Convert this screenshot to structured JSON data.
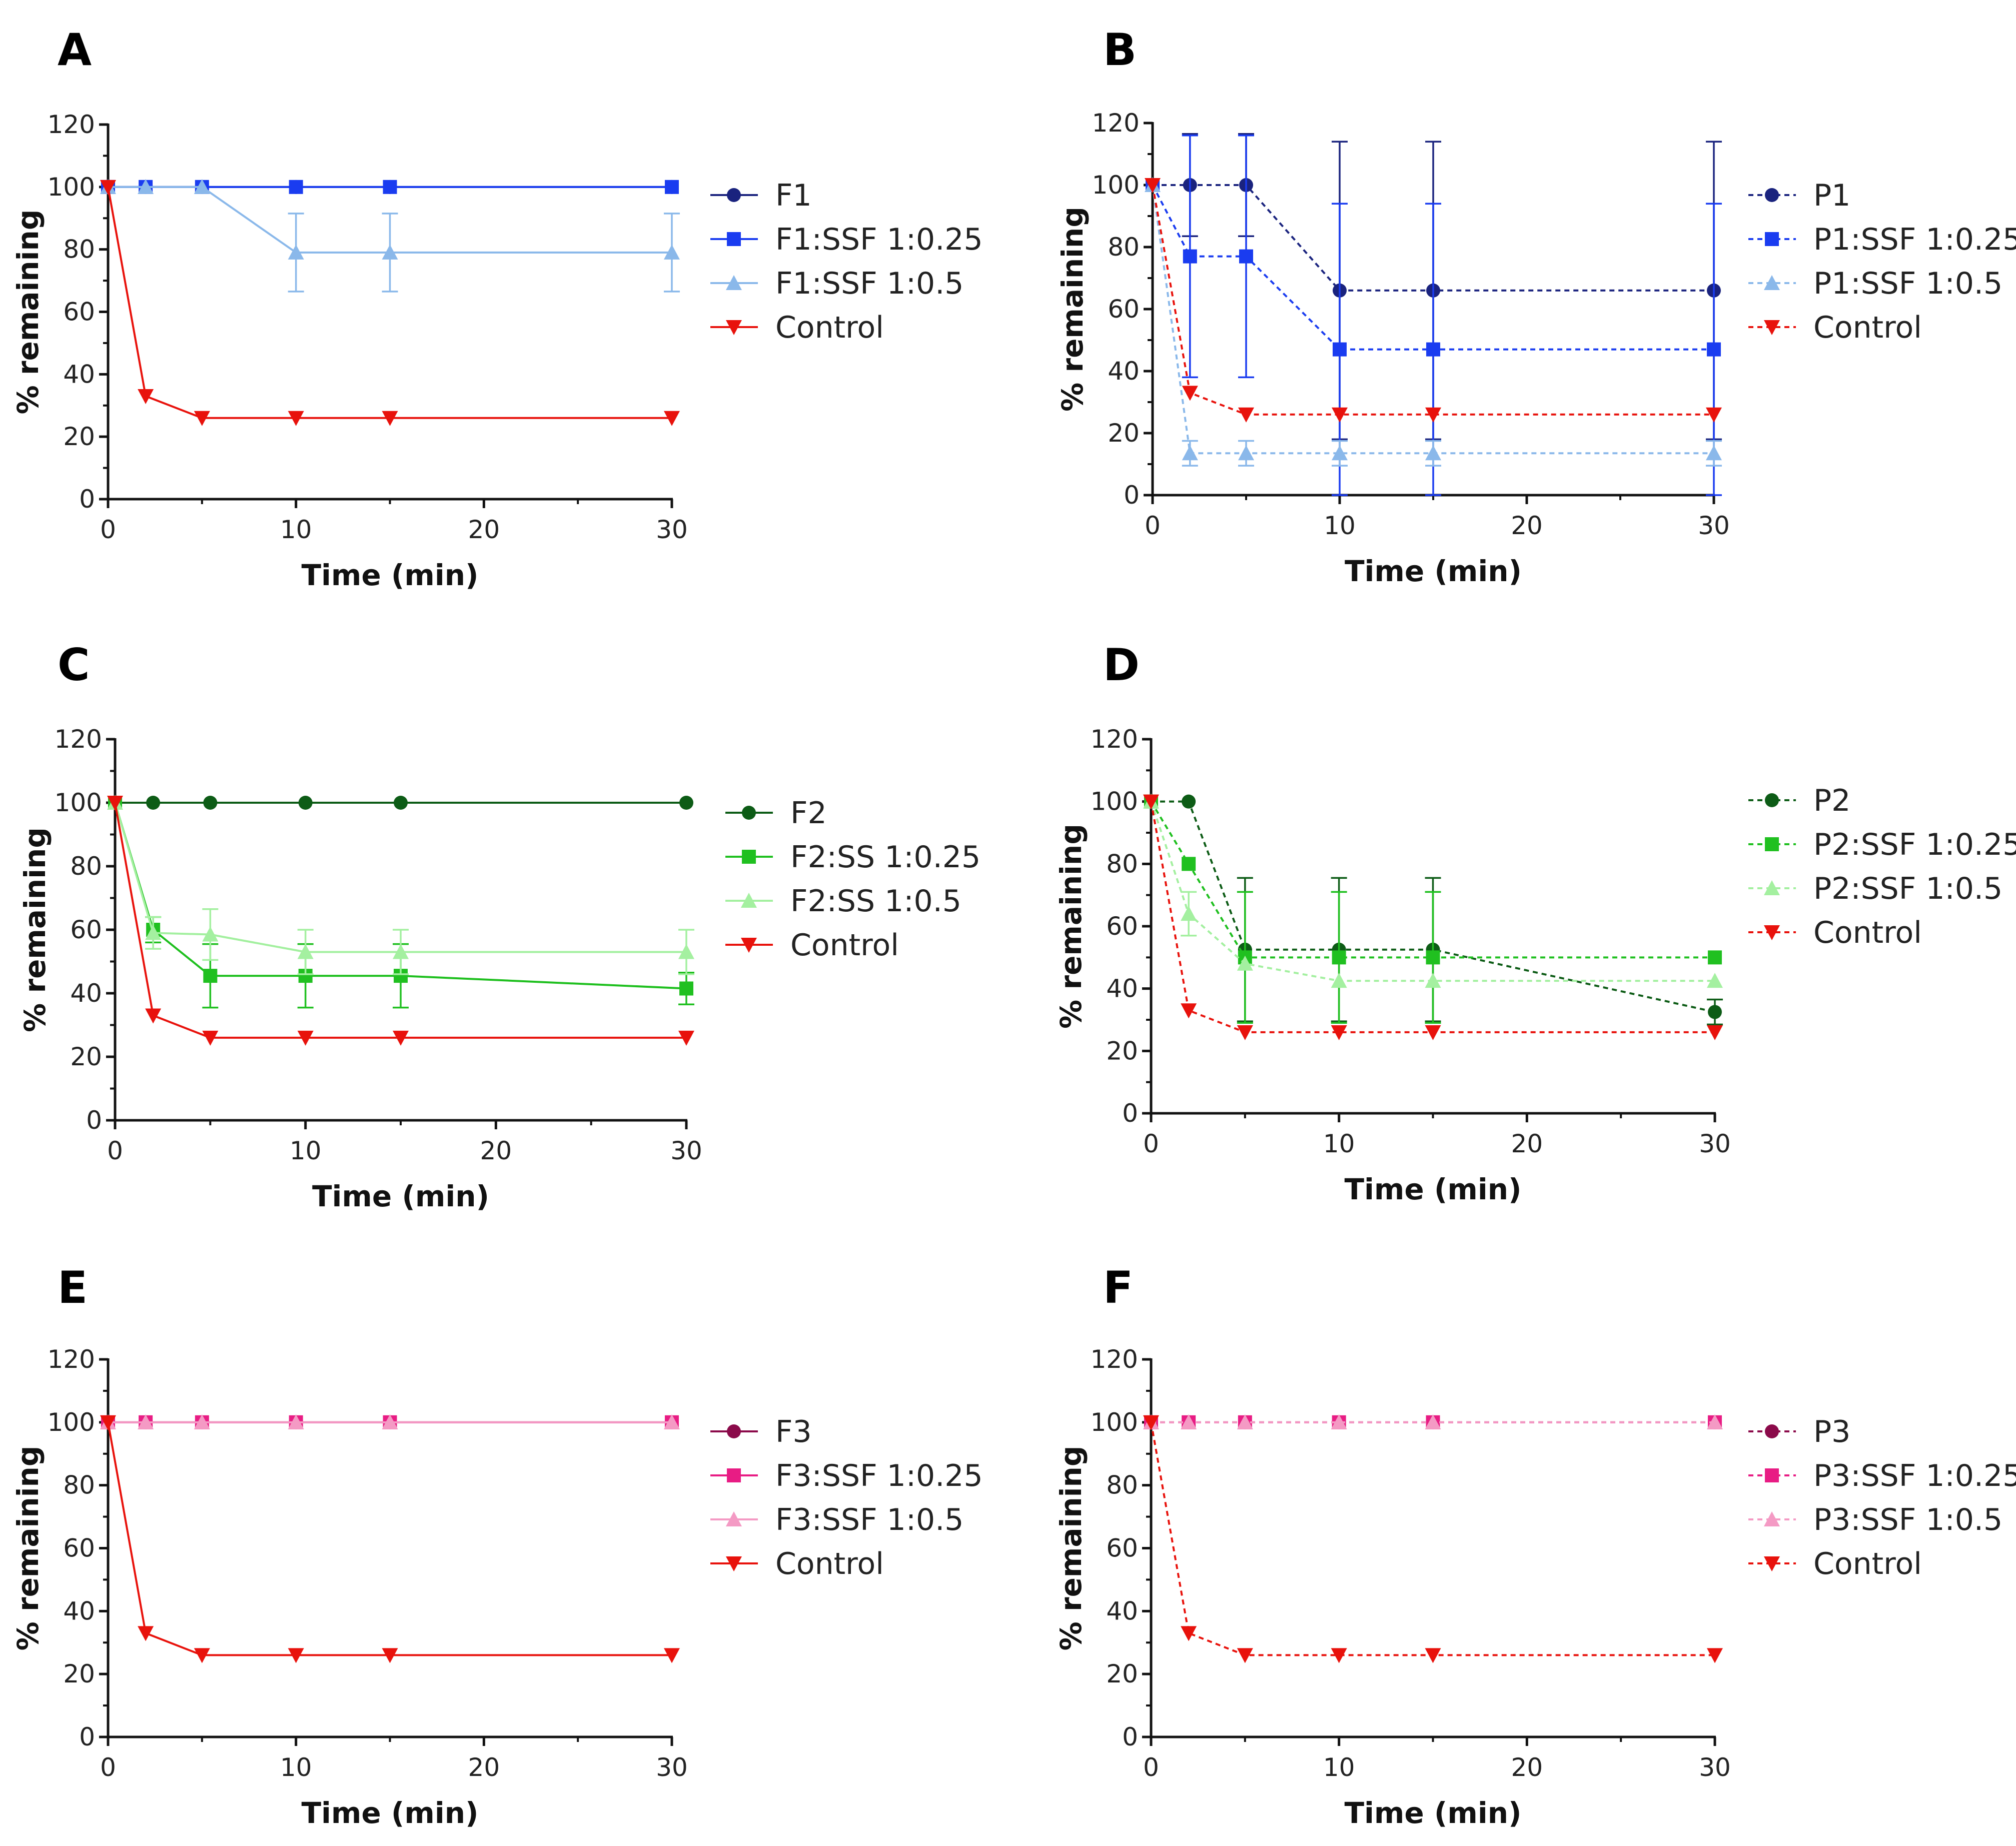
{
  "chart_data": [
    {
      "panel": "A",
      "type": "line",
      "xlabel": "Time (min)",
      "ylabel": "% remaining",
      "xlim": [
        0,
        30
      ],
      "ylim": [
        0,
        120
      ],
      "xticks": [
        0,
        10,
        20,
        30
      ],
      "yticks": [
        0,
        20,
        40,
        60,
        80,
        100,
        120
      ],
      "x": [
        0,
        2,
        5,
        10,
        15,
        30
      ],
      "legend_position": "right",
      "series": [
        {
          "name": "F1",
          "color": "#1a237e",
          "marker": "circle",
          "dashed": false,
          "values": [
            100,
            100,
            100,
            100,
            100,
            100
          ],
          "errors": [
            0,
            0,
            0,
            0,
            0,
            0
          ]
        },
        {
          "name": "F1:SSF 1:0.25",
          "color": "#1a3cf0",
          "marker": "square",
          "dashed": false,
          "values": [
            100,
            100,
            100,
            100,
            100,
            100
          ],
          "errors": [
            0,
            0,
            0,
            0,
            0,
            0
          ]
        },
        {
          "name": "F1:SSF 1:0.5",
          "color": "#8ab8ea",
          "marker": "triangle-up",
          "dashed": false,
          "values": [
            100,
            100,
            100,
            79,
            79,
            79
          ],
          "errors": [
            0,
            0,
            0,
            12.5,
            12.5,
            12.5
          ]
        },
        {
          "name": "Control",
          "color": "#e8120c",
          "marker": "triangle-down",
          "dashed": false,
          "values": [
            100,
            33,
            26,
            26,
            26,
            26
          ],
          "errors": [
            0,
            0,
            0,
            0,
            0,
            0
          ]
        }
      ]
    },
    {
      "panel": "B",
      "type": "line",
      "xlabel": "Time (min)",
      "ylabel": "% remaining",
      "xlim": [
        0,
        30
      ],
      "ylim": [
        0,
        120
      ],
      "xticks": [
        0,
        10,
        20,
        30
      ],
      "yticks": [
        0,
        20,
        40,
        60,
        80,
        100,
        120
      ],
      "x": [
        0,
        2,
        5,
        10,
        15,
        30
      ],
      "legend_position": "right",
      "series": [
        {
          "name": "P1",
          "color": "#1a237e",
          "marker": "circle",
          "dashed": true,
          "values": [
            100,
            100,
            100,
            66,
            66,
            66
          ],
          "errors": [
            0,
            16.5,
            16.5,
            48,
            48,
            48
          ]
        },
        {
          "name": "P1:SSF 1:0.25",
          "color": "#1a3cf0",
          "marker": "square",
          "dashed": true,
          "values": [
            100,
            77,
            77,
            47,
            47,
            47
          ],
          "errors": [
            0,
            39,
            39,
            47,
            47,
            47
          ]
        },
        {
          "name": "P1:SSF 1:0.5",
          "color": "#8ab8ea",
          "marker": "triangle-up",
          "dashed": true,
          "values": [
            100,
            13.5,
            13.5,
            13.5,
            13.5,
            13.5
          ],
          "errors": [
            0,
            4,
            4,
            4,
            4,
            4
          ]
        },
        {
          "name": "Control",
          "color": "#e8120c",
          "marker": "triangle-down",
          "dashed": true,
          "values": [
            100,
            33,
            26,
            26,
            26,
            26
          ],
          "errors": [
            0,
            0,
            0,
            0,
            0,
            0
          ]
        }
      ]
    },
    {
      "panel": "C",
      "type": "line",
      "xlabel": "Time (min)",
      "ylabel": "% remaining",
      "xlim": [
        0,
        30
      ],
      "ylim": [
        0,
        120
      ],
      "xticks": [
        0,
        10,
        20,
        30
      ],
      "yticks": [
        0,
        20,
        40,
        60,
        80,
        100,
        120
      ],
      "x": [
        0,
        2,
        5,
        10,
        15,
        30
      ],
      "legend_position": "right",
      "series": [
        {
          "name": "F2",
          "color": "#0d5c16",
          "marker": "circle",
          "dashed": false,
          "values": [
            100,
            100,
            100,
            100,
            100,
            100
          ],
          "errors": [
            0,
            0,
            0,
            0,
            0,
            0
          ]
        },
        {
          "name": "F2:SS 1:0.25",
          "color": "#20c020",
          "marker": "square",
          "dashed": false,
          "values": [
            100,
            60,
            45.5,
            45.5,
            45.5,
            41.5
          ],
          "errors": [
            0,
            4,
            10,
            10,
            10,
            5
          ]
        },
        {
          "name": "F2:SS 1:0.5",
          "color": "#a4f0a0",
          "marker": "triangle-up",
          "dashed": false,
          "values": [
            100,
            59,
            58.5,
            53,
            53,
            53
          ],
          "errors": [
            0,
            5,
            8,
            7,
            7,
            7
          ]
        },
        {
          "name": "Control",
          "color": "#e8120c",
          "marker": "triangle-down",
          "dashed": false,
          "values": [
            100,
            33,
            26,
            26,
            26,
            26
          ],
          "errors": [
            0,
            0,
            0,
            0,
            0,
            0
          ]
        }
      ]
    },
    {
      "panel": "D",
      "type": "line",
      "xlabel": "Time (min)",
      "ylabel": "% remaining",
      "xlim": [
        0,
        30
      ],
      "ylim": [
        0,
        120
      ],
      "xticks": [
        0,
        10,
        20,
        30
      ],
      "yticks": [
        0,
        20,
        40,
        60,
        80,
        100,
        120
      ],
      "x": [
        0,
        2,
        5,
        10,
        15,
        30
      ],
      "legend_position": "right",
      "series": [
        {
          "name": "P2",
          "color": "#0d5c16",
          "marker": "circle",
          "dashed": true,
          "values": [
            100,
            100,
            52.5,
            52.5,
            52.5,
            32.5
          ],
          "errors": [
            0,
            0,
            23,
            23,
            23,
            4
          ]
        },
        {
          "name": "P2:SSF 1:0.25",
          "color": "#20c020",
          "marker": "square",
          "dashed": true,
          "values": [
            100,
            80,
            50,
            50,
            50,
            50
          ],
          "errors": [
            0,
            0,
            21,
            21,
            21,
            0
          ]
        },
        {
          "name": "P2:SSF 1:0.5",
          "color": "#a4f0a0",
          "marker": "triangle-up",
          "dashed": true,
          "values": [
            100,
            64,
            48,
            42.5,
            42.5,
            42.5
          ],
          "errors": [
            0,
            7,
            0,
            0,
            0,
            0
          ]
        },
        {
          "name": "Control",
          "color": "#e8120c",
          "marker": "triangle-down",
          "dashed": true,
          "values": [
            100,
            33,
            26,
            26,
            26,
            26
          ],
          "errors": [
            0,
            0,
            0,
            0,
            0,
            0
          ]
        }
      ]
    },
    {
      "panel": "E",
      "type": "line",
      "xlabel": "Time (min)",
      "ylabel": "% remaining",
      "xlim": [
        0,
        30
      ],
      "ylim": [
        0,
        120
      ],
      "xticks": [
        0,
        10,
        20,
        30
      ],
      "yticks": [
        0,
        20,
        40,
        60,
        80,
        100,
        120
      ],
      "x": [
        0,
        2,
        5,
        10,
        15,
        30
      ],
      "legend_position": "right",
      "series": [
        {
          "name": "F3",
          "color": "#8b0a4a",
          "marker": "circle",
          "dashed": false,
          "values": [
            100,
            100,
            100,
            100,
            100,
            100
          ],
          "errors": [
            0,
            0,
            0,
            0,
            0,
            0
          ]
        },
        {
          "name": "F3:SSF 1:0.25",
          "color": "#e81c84",
          "marker": "square",
          "dashed": false,
          "values": [
            100,
            100,
            100,
            100,
            100,
            100
          ],
          "errors": [
            0,
            0,
            0,
            0,
            0,
            0
          ]
        },
        {
          "name": "F3:SSF 1:0.5",
          "color": "#f49ac4",
          "marker": "triangle-up",
          "dashed": false,
          "values": [
            100,
            100,
            100,
            100,
            100,
            100
          ],
          "errors": [
            0,
            0,
            0,
            0,
            0,
            0
          ]
        },
        {
          "name": "Control",
          "color": "#e8120c",
          "marker": "triangle-down",
          "dashed": false,
          "values": [
            100,
            33,
            26,
            26,
            26,
            26
          ],
          "errors": [
            0,
            0,
            0,
            0,
            0,
            0
          ]
        }
      ]
    },
    {
      "panel": "F",
      "type": "line",
      "xlabel": "Time (min)",
      "ylabel": "% remaining",
      "xlim": [
        0,
        30
      ],
      "ylim": [
        0,
        120
      ],
      "xticks": [
        0,
        10,
        20,
        30
      ],
      "yticks": [
        0,
        20,
        40,
        60,
        80,
        100,
        120
      ],
      "x": [
        0,
        2,
        5,
        10,
        15,
        30
      ],
      "legend_position": "right",
      "series": [
        {
          "name": "P3",
          "color": "#8b0a4a",
          "marker": "circle",
          "dashed": true,
          "values": [
            100,
            100,
            100,
            100,
            100,
            100
          ],
          "errors": [
            0,
            0,
            0,
            0,
            0,
            0
          ]
        },
        {
          "name": "P3:SSF 1:0.25",
          "color": "#e81c84",
          "marker": "square",
          "dashed": true,
          "values": [
            100,
            100,
            100,
            100,
            100,
            100
          ],
          "errors": [
            0,
            0,
            0,
            0,
            0,
            0
          ]
        },
        {
          "name": "P3:SSF 1:0.5",
          "color": "#f49ac4",
          "marker": "triangle-up",
          "dashed": true,
          "values": [
            100,
            100,
            100,
            100,
            100,
            100
          ],
          "errors": [
            0,
            0,
            0,
            0,
            0,
            0
          ]
        },
        {
          "name": "Control",
          "color": "#e8120c",
          "marker": "triangle-down",
          "dashed": true,
          "values": [
            100,
            33,
            26,
            26,
            26,
            26
          ],
          "errors": [
            0,
            0,
            0,
            0,
            0,
            0
          ]
        }
      ]
    }
  ]
}
